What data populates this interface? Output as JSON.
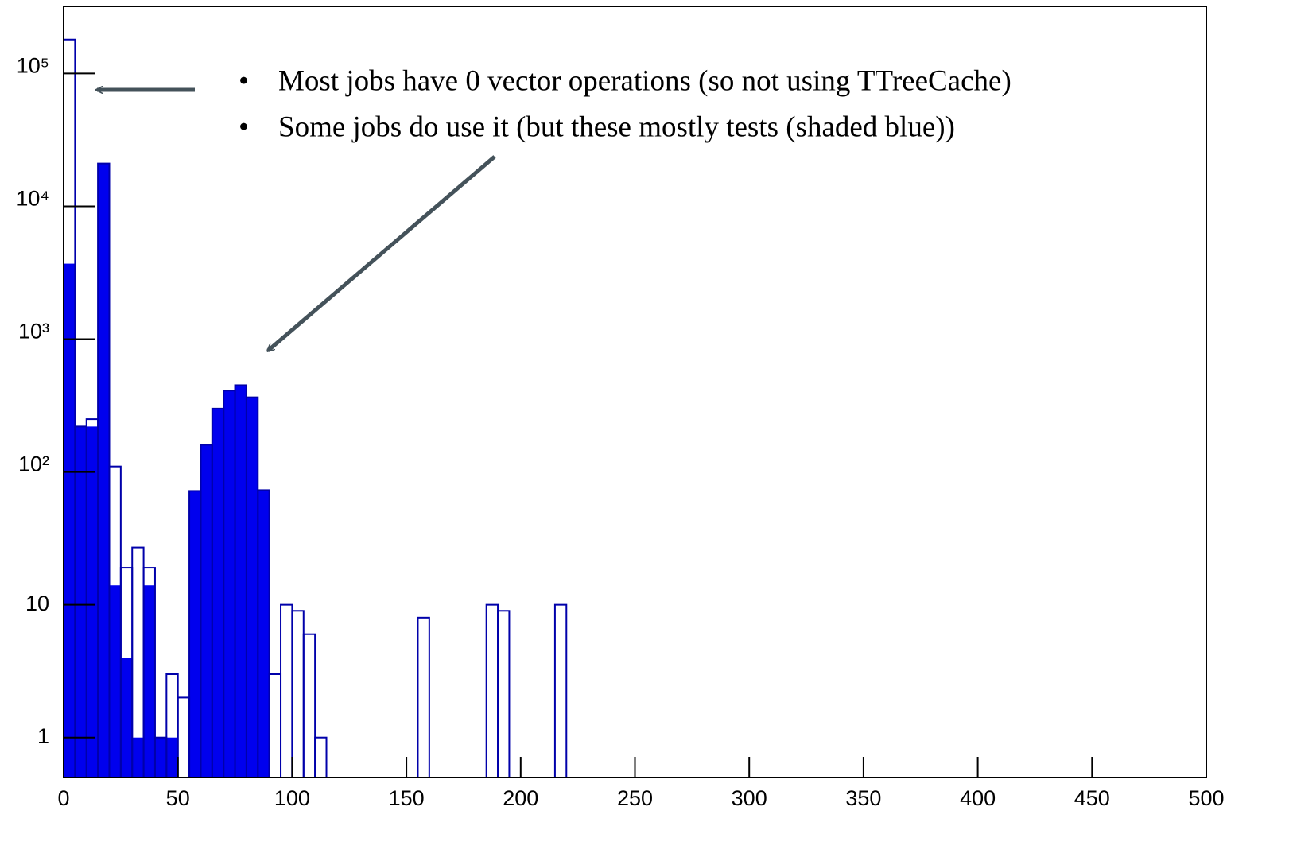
{
  "chart_data": {
    "type": "histogram",
    "bins": [
      0,
      5,
      10,
      15,
      20,
      25,
      30,
      35,
      40,
      45,
      50,
      55,
      60,
      65,
      70,
      75,
      80,
      85,
      90,
      95,
      100,
      105,
      110,
      115,
      120,
      125,
      130,
      135,
      140,
      145,
      150,
      155,
      160,
      165,
      170,
      175,
      180,
      185,
      190,
      195,
      200,
      205,
      210,
      215,
      220
    ],
    "series": [
      {
        "color": "#0000ee",
        "style": "filled",
        "values": [
          3700,
          220,
          220,
          21000,
          14,
          4,
          1,
          14,
          1,
          1,
          0,
          72,
          160,
          300,
          410,
          450,
          365,
          73,
          0,
          0,
          0,
          0,
          0,
          0,
          0,
          0,
          0,
          0,
          0,
          0,
          0,
          0,
          0,
          0,
          0,
          0,
          0,
          0,
          0,
          0,
          0,
          0,
          0,
          0
        ]
      },
      {
        "color": "#0000aa",
        "style": "outline",
        "values": [
          180000,
          220,
          250,
          21000,
          110,
          19,
          27,
          19,
          1,
          3,
          2,
          72,
          160,
          300,
          410,
          450,
          365,
          73,
          3,
          10,
          9,
          6,
          1,
          0,
          0,
          0,
          0,
          0,
          0,
          0,
          0,
          8,
          0,
          0,
          0,
          0,
          0,
          10,
          9,
          0,
          0,
          0,
          0,
          10
        ]
      }
    ],
    "xlim": [
      0,
      500
    ],
    "xticks": [
      0,
      50,
      100,
      150,
      200,
      250,
      300,
      350,
      400,
      450,
      500
    ],
    "ylim": [
      0.5,
      320000
    ],
    "log_y": true,
    "yticks": [
      1,
      10,
      {
        "value": 100,
        "label": "10²"
      },
      {
        "value": 1000,
        "label": "10³"
      },
      {
        "value": 10000,
        "label": "10⁴"
      },
      {
        "value": 100000,
        "label": "10⁵"
      }
    ],
    "annotations": [
      "Most jobs have 0 vector operations (so not using TTreeCache)",
      "Some jobs do use it (but these mostly tests (shaded blue))"
    ]
  }
}
